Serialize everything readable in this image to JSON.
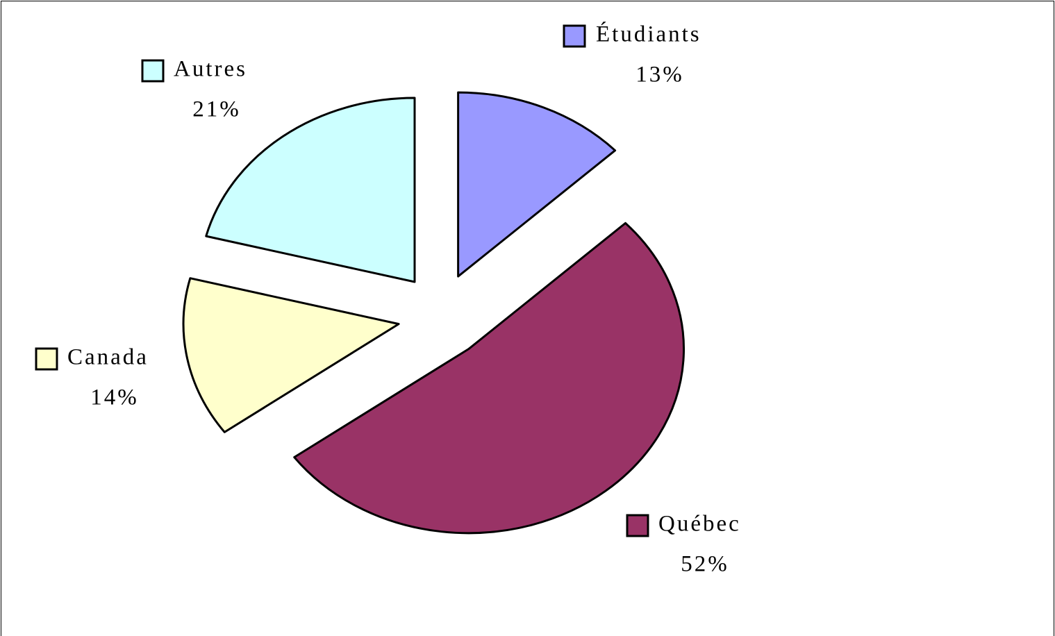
{
  "chart_data": {
    "type": "pie",
    "categories": [
      "Étudiants",
      "Québec",
      "Canada",
      "Autres"
    ],
    "values": [
      13,
      52,
      14,
      21
    ],
    "value_labels": [
      "13%",
      "52%",
      "14%",
      "21%"
    ],
    "colors": [
      "#9999ff",
      "#993366",
      "#ffffcc",
      "#ccffff"
    ],
    "legend": "labels"
  }
}
